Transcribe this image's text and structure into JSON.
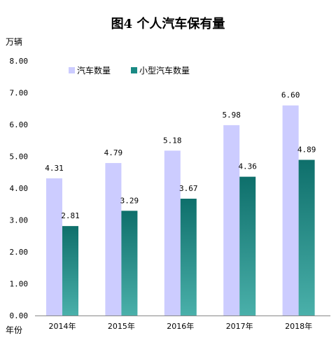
{
  "chart_data": {
    "type": "bar",
    "title": "图4  个人汽车保有量",
    "ylabel": "万辆",
    "xlabel": "年份",
    "categories": [
      "2014年",
      "2015年",
      "2016年",
      "2017年",
      "2018年"
    ],
    "series": [
      {
        "name": "汽车数量",
        "values": [
          4.31,
          4.79,
          5.18,
          5.98,
          6.6
        ],
        "color": "#ccccff"
      },
      {
        "name": "小型汽车数量",
        "values": [
          2.81,
          3.29,
          3.67,
          4.36,
          4.89
        ],
        "color": "#1a8a84"
      }
    ],
    "ylim": [
      0,
      8
    ],
    "yticks": [
      "0.00",
      "1.00",
      "2.00",
      "3.00",
      "4.00",
      "5.00",
      "6.00",
      "7.00",
      "8.00"
    ],
    "data_labels": [
      [
        "4.31",
        "4.79",
        "5.18",
        "5.98",
        "6.60"
      ],
      [
        "2.81",
        "3.29",
        "3.67",
        "4.36",
        "4.89"
      ]
    ],
    "grid": false,
    "legend_position": "top-left"
  }
}
